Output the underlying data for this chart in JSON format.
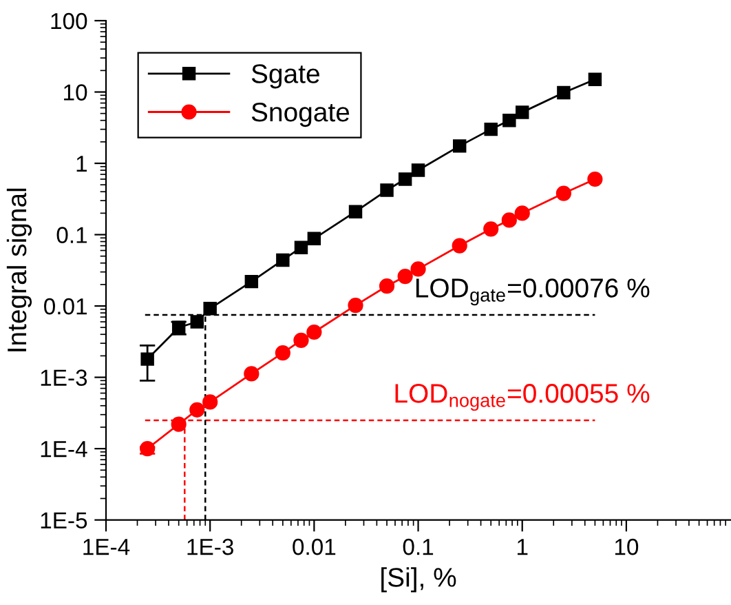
{
  "chart_data": {
    "type": "line",
    "xlabel": "[Si], %",
    "ylabel": "Integral signal",
    "log": "xy",
    "legend": "top left",
    "grid": false,
    "line_style": "solid",
    "x": [
      0.00025,
      0.0005,
      0.00075,
      0.001,
      0.0025,
      0.005,
      0.0075,
      0.01,
      0.025,
      0.05,
      0.075,
      0.1,
      0.25,
      0.5,
      0.75,
      1,
      2.5,
      5
    ],
    "series": [
      {
        "name": "Sgate",
        "color": "#000000",
        "marker": "square",
        "values": [
          0.0018,
          0.005,
          0.006,
          0.0092,
          0.022,
          0.044,
          0.066,
          0.088,
          0.21,
          0.42,
          0.6,
          0.8,
          1.75,
          3,
          4,
          5.2,
          9.8,
          15
        ],
        "errors": [
          [
            0.0009,
            0.0028
          ],
          [
            0.004,
            0.006
          ],
          null,
          null,
          null,
          null,
          null,
          null,
          null,
          null,
          null,
          null,
          null,
          null,
          null,
          null,
          null,
          null
        ]
      },
      {
        "name": "Snogate",
        "color": "#ff0000",
        "marker": "circle",
        "values": [
          0.0001,
          0.00022,
          0.00035,
          0.00045,
          0.00112,
          0.0022,
          0.0033,
          0.0043,
          0.0102,
          0.019,
          0.026,
          0.033,
          0.07,
          0.12,
          0.16,
          0.2,
          0.38,
          0.6
        ],
        "errors": [
          [
            8.5e-05,
            0.000105
          ],
          null,
          null,
          null,
          null,
          null,
          null,
          null,
          null,
          null,
          null,
          null,
          null,
          null,
          null,
          null,
          null,
          null
        ]
      }
    ],
    "ref_lines": [
      {
        "axis": "y",
        "value": 0.0075,
        "color": "#000000",
        "line_style": "dashed"
      },
      {
        "axis": "y",
        "value": 0.00025,
        "color": "#ff0000",
        "line_style": "dashed"
      },
      {
        "axis": "x",
        "value": 0.0009,
        "color": "#000000",
        "line_style": "dashed"
      },
      {
        "axis": "x",
        "value": 0.00057,
        "color": "#ff0000",
        "line_style": "dashed"
      }
    ],
    "annotations": [
      "LOD$_{gate}$=0.00076 %",
      "LOD$_{nogate}$=0.00055 %"
    ],
    "xlim": [
      0.0001,
      100
    ],
    "ylim": [
      1e-05,
      100
    ],
    "xticks": [
      {
        "value": 0.0001,
        "label": "1E-4"
      },
      {
        "value": 0.001,
        "label": "1E-3"
      },
      0.01,
      0.1,
      1,
      10
    ],
    "yticks": [
      {
        "value": 1e-05,
        "label": "1E-5"
      },
      {
        "value": 0.0001,
        "label": "1E-4"
      },
      {
        "value": 0.001,
        "label": "1E-3"
      },
      0.01,
      0.1,
      1,
      10,
      100
    ]
  }
}
